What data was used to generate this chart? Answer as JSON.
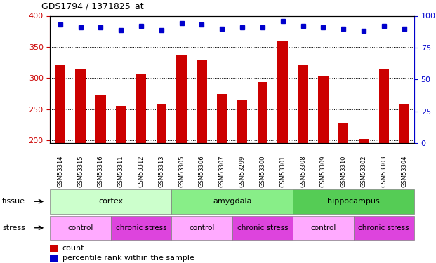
{
  "title": "GDS1794 / 1371825_at",
  "samples": [
    "GSM53314",
    "GSM53315",
    "GSM53316",
    "GSM53311",
    "GSM53312",
    "GSM53313",
    "GSM53305",
    "GSM53306",
    "GSM53307",
    "GSM53299",
    "GSM53300",
    "GSM53301",
    "GSM53308",
    "GSM53309",
    "GSM53310",
    "GSM53302",
    "GSM53303",
    "GSM53304"
  ],
  "counts": [
    322,
    314,
    272,
    255,
    306,
    258,
    338,
    329,
    274,
    264,
    294,
    360,
    321,
    303,
    228,
    202,
    315,
    258
  ],
  "percentiles": [
    93,
    91,
    91,
    89,
    92,
    89,
    94,
    93,
    90,
    91,
    91,
    96,
    92,
    91,
    90,
    88,
    92,
    90
  ],
  "ylim_left": [
    195,
    400
  ],
  "ylim_right": [
    0,
    100
  ],
  "yticks_left": [
    200,
    250,
    300,
    350,
    400
  ],
  "yticks_right": [
    0,
    25,
    50,
    75,
    100
  ],
  "bar_color": "#CC0000",
  "dot_color": "#0000CC",
  "tick_area_bg": "#bbbbbb",
  "tissue_groups": [
    {
      "label": "cortex",
      "start": 0,
      "end": 6,
      "color": "#ccffcc"
    },
    {
      "label": "amygdala",
      "start": 6,
      "end": 12,
      "color": "#88ee88"
    },
    {
      "label": "hippocampus",
      "start": 12,
      "end": 18,
      "color": "#55cc55"
    }
  ],
  "stress_groups": [
    {
      "label": "control",
      "start": 0,
      "end": 3,
      "color": "#ffaaff"
    },
    {
      "label": "chronic stress",
      "start": 3,
      "end": 6,
      "color": "#dd44dd"
    },
    {
      "label": "control",
      "start": 6,
      "end": 9,
      "color": "#ffaaff"
    },
    {
      "label": "chronic stress",
      "start": 9,
      "end": 12,
      "color": "#dd44dd"
    },
    {
      "label": "control",
      "start": 12,
      "end": 15,
      "color": "#ffaaff"
    },
    {
      "label": "chronic stress",
      "start": 15,
      "end": 18,
      "color": "#dd44dd"
    }
  ],
  "legend_count_label": "count",
  "legend_pct_label": "percentile rank within the sample",
  "tissue_label": "tissue",
  "stress_label": "stress"
}
